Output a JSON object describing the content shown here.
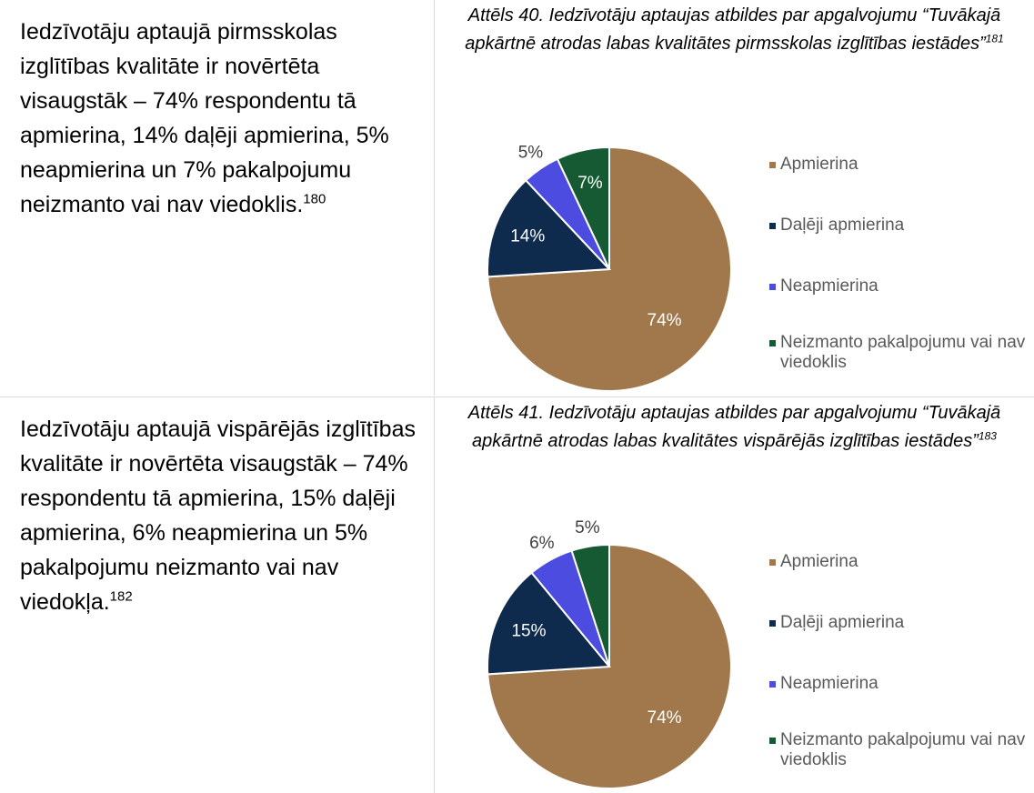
{
  "rows": [
    {
      "text": "Iedzīvotāju aptaujā pirmsskolas izglītības kvalitāte ir novērtēta visaugstāk – 74% respondentu tā apmierina, 14% daļēji apmierina, 5% neapmierina un 7% pakalpojumu neizmanto vai nav viedoklis.",
      "note": "180",
      "caption": "Attēls 40. Iedzīvotāju aptaujas atbildes par apgalvojumu “Tuvākajā apkārtnē atrodas labas kvalitātes pirmsskolas izglītības iestādes”",
      "caption_note": "181",
      "chart": {
        "type": "pie",
        "categories": [
          "Apmierina",
          "Daļēji apmierina",
          "Neapmierina",
          "Neizmanto pakalpojumu vai nav viedoklis"
        ],
        "values": [
          74,
          14,
          5,
          7
        ],
        "value_labels": [
          "74%",
          "14%",
          "5%",
          "7%"
        ],
        "colors": [
          "#a0784c",
          "#0e2b4d",
          "#4d4ce0",
          "#155a32"
        ],
        "legend": "right"
      }
    },
    {
      "text": "Iedzīvotāju aptaujā vispārējās izglītības kvalitāte ir novērtēta visaugstāk – 74% respondentu tā apmierina, 15% daļēji apmierina, 6% neapmierina un 5% pakalpojumu neizmanto vai nav viedokļa.",
      "note": "182",
      "caption": "Attēls 41. Iedzīvotāju aptaujas atbildes par apgalvojumu “Tuvākajā apkārtnē atrodas labas kvalitātes vispārējās izglītības iestādes”",
      "caption_note": "183",
      "chart": {
        "type": "pie",
        "categories": [
          "Apmierina",
          "Daļēji apmierina",
          "Neapmierina",
          "Neizmanto pakalpojumu vai nav viedoklis"
        ],
        "values": [
          74,
          15,
          6,
          5
        ],
        "value_labels": [
          "74%",
          "15%",
          "6%",
          "5%"
        ],
        "colors": [
          "#a0784c",
          "#0e2b4d",
          "#4d4ce0",
          "#155a32"
        ],
        "legend": "right"
      }
    }
  ]
}
